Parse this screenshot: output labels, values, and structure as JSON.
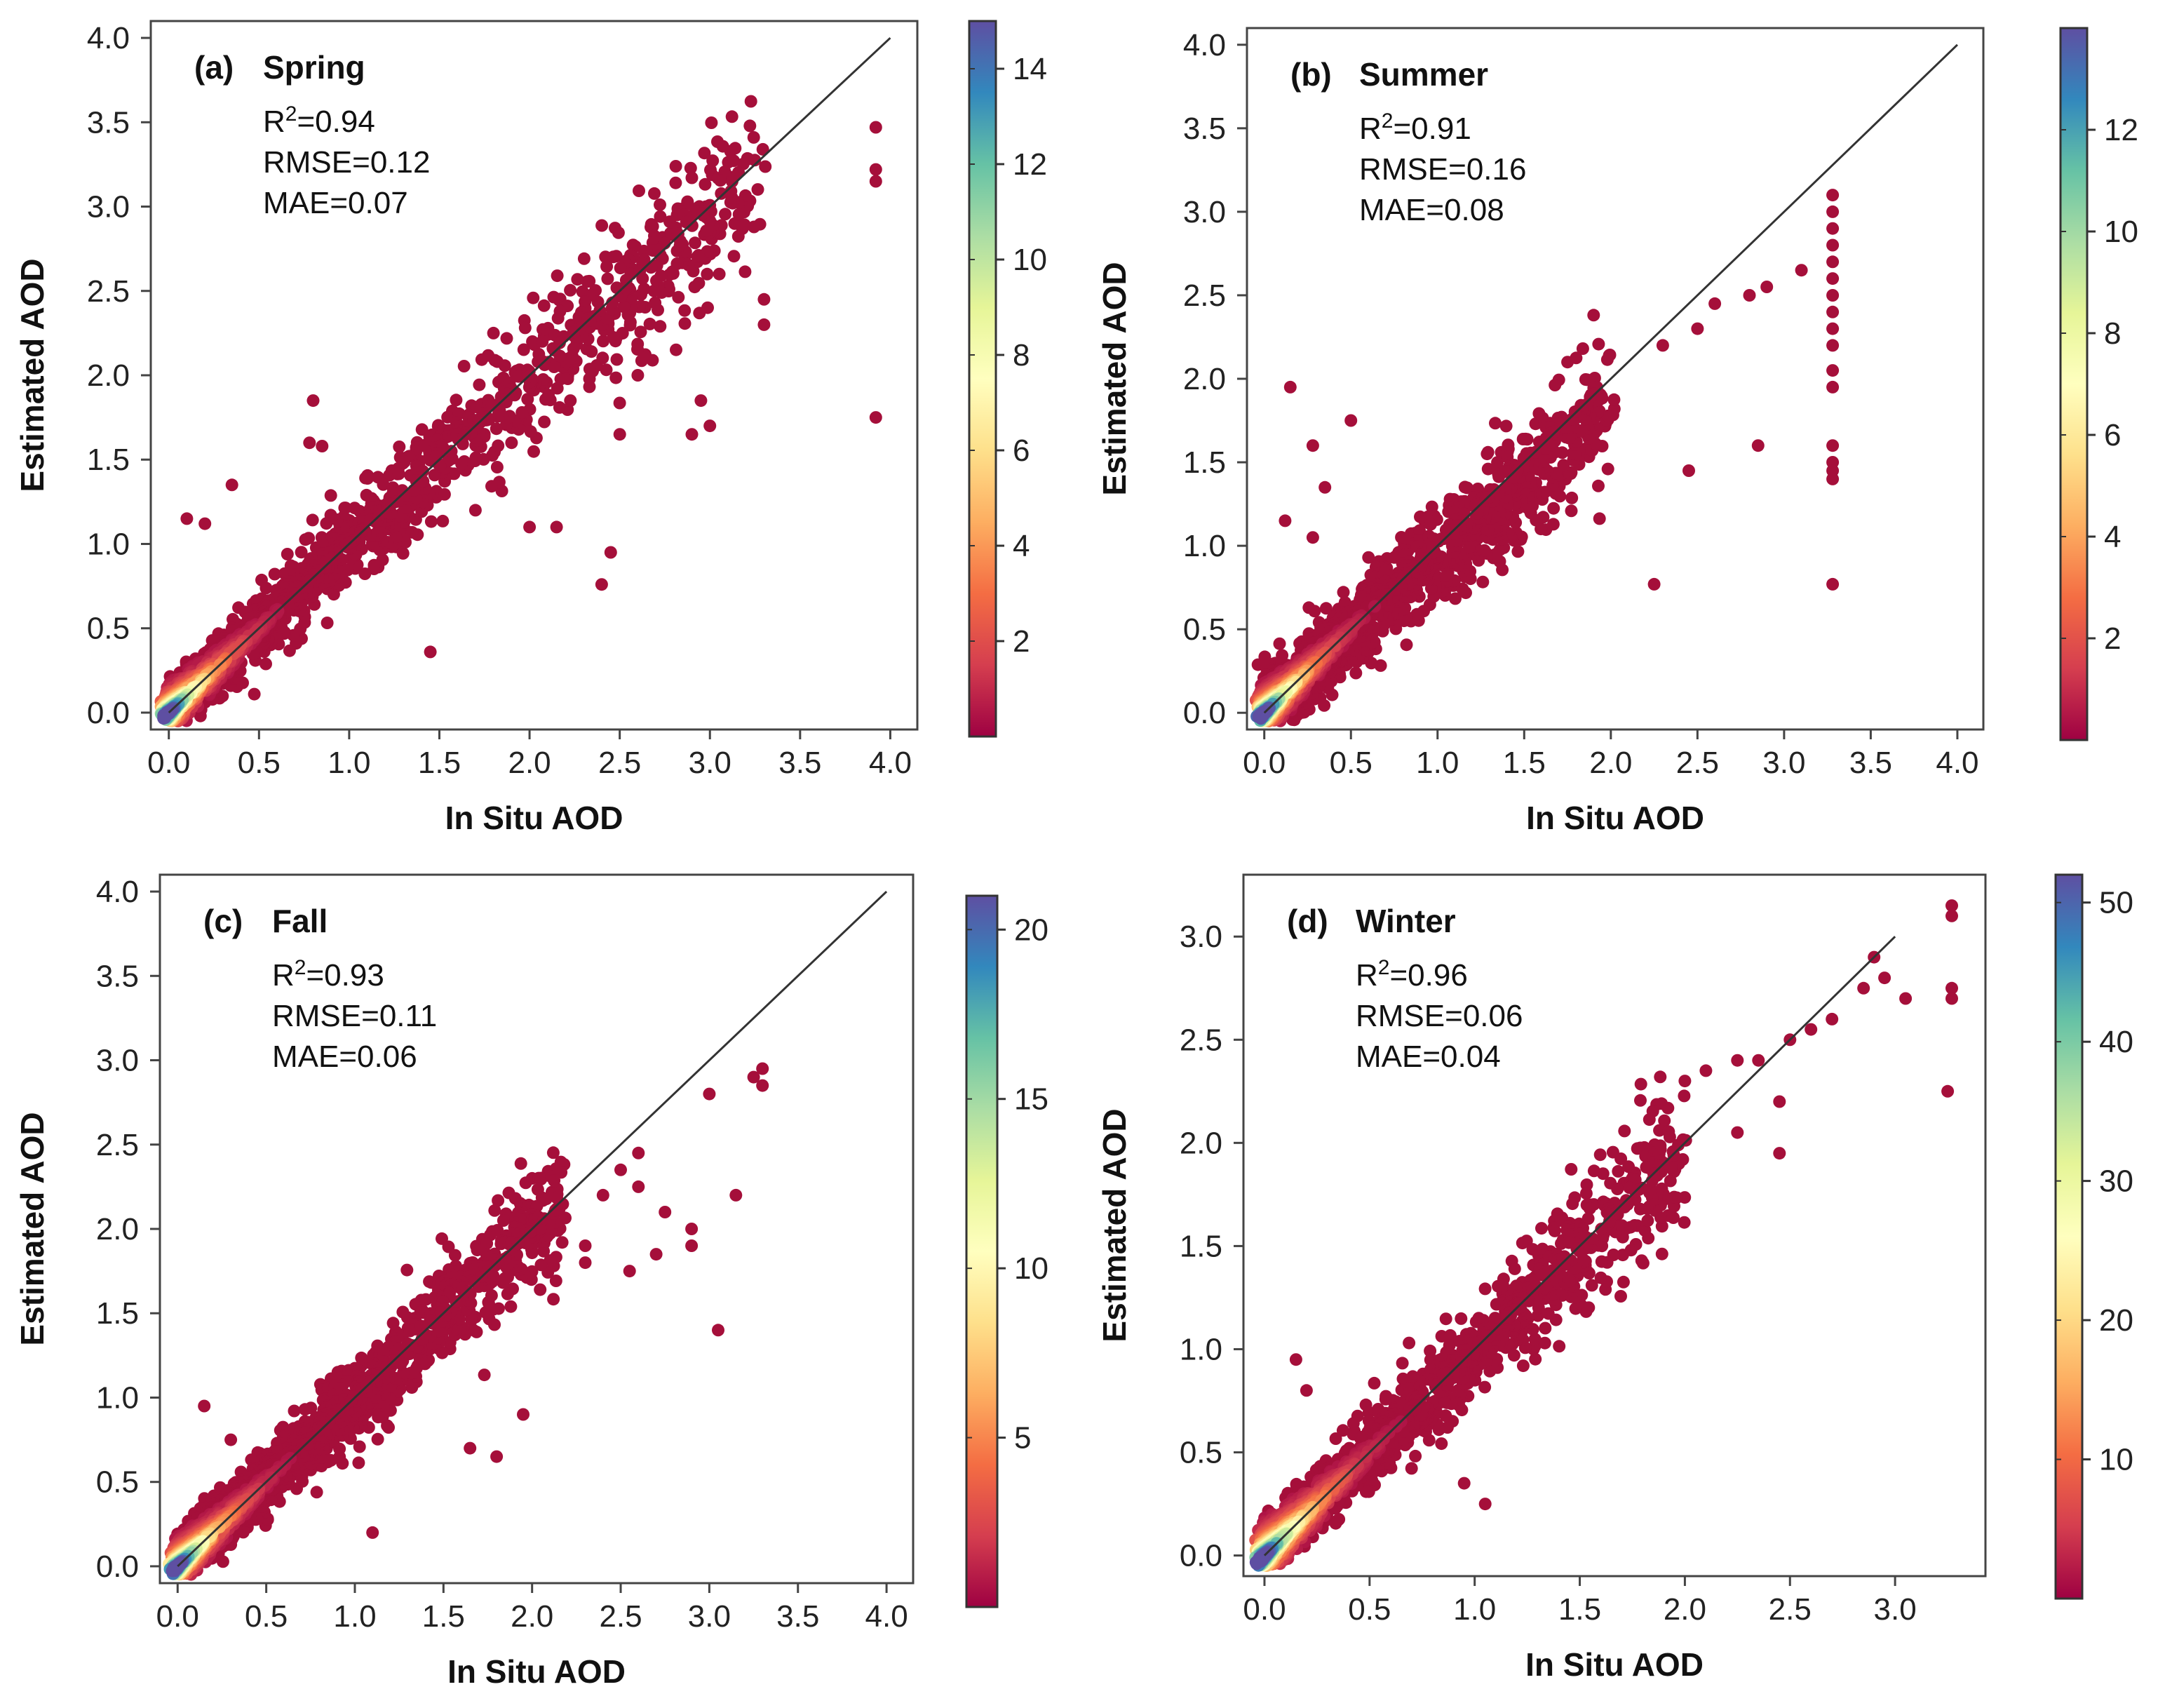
{
  "colors": {
    "point_low": "#a50f3a",
    "identity_line": "#333333",
    "frame": "#444444",
    "colormap": [
      "#9e0142",
      "#d53e4f",
      "#f46d43",
      "#fdae61",
      "#fee08b",
      "#ffffbf",
      "#e6f598",
      "#abdda4",
      "#66c2a5",
      "#3288bd",
      "#5e4fa2"
    ]
  },
  "chart_data": [
    {
      "type": "scatter",
      "id": "a",
      "label": "(a)",
      "title": "Spring",
      "stats": {
        "r2_prefix": "R",
        "r2_sup": "2",
        "r2_value": "=0.94",
        "rmse": "RMSE=0.12",
        "mae": "MAE=0.07"
      },
      "xlabel": "In Situ AOD",
      "ylabel": "Estimated AOD",
      "xlim": [
        -0.1,
        4.15
      ],
      "ylim": [
        -0.1,
        4.1
      ],
      "xticks": [
        "0.0",
        "0.5",
        "1.0",
        "1.5",
        "2.0",
        "2.5",
        "3.0",
        "3.5",
        "4.0"
      ],
      "yticks": [
        "0.0",
        "0.5",
        "1.0",
        "1.5",
        "2.0",
        "2.5",
        "3.0",
        "3.5",
        "4.0"
      ],
      "identity_line": [
        [
          0,
          0
        ],
        [
          4.0,
          4.0
        ]
      ],
      "colorbar": {
        "min": 0,
        "max": 15,
        "ticks": [
          "2",
          "4",
          "6",
          "8",
          "10",
          "12",
          "14"
        ]
      },
      "density_core": {
        "x_max": 3.3,
        "bias": -0.03,
        "spread": 0.07
      },
      "outliers": [
        [
          3.92,
          3.47
        ],
        [
          3.92,
          3.22
        ],
        [
          3.92,
          3.15
        ],
        [
          3.92,
          1.75
        ],
        [
          2.4,
          0.76
        ],
        [
          1.45,
          0.36
        ],
        [
          2.0,
          1.1
        ],
        [
          2.15,
          1.1
        ],
        [
          2.45,
          0.95
        ],
        [
          1.7,
          1.2
        ],
        [
          0.8,
          1.85
        ],
        [
          0.78,
          1.6
        ],
        [
          0.85,
          1.58
        ],
        [
          0.1,
          1.15
        ],
        [
          0.2,
          1.12
        ],
        [
          0.35,
          1.35
        ],
        [
          1.9,
          1.6
        ],
        [
          2.5,
          1.65
        ],
        [
          2.9,
          1.65
        ],
        [
          2.6,
          2.0
        ],
        [
          2.95,
          1.85
        ],
        [
          3.0,
          1.7
        ],
        [
          1.8,
          2.25
        ],
        [
          3.3,
          2.3
        ],
        [
          3.3,
          2.45
        ]
      ]
    },
    {
      "type": "scatter",
      "id": "b",
      "label": "(b)",
      "title": "Summer",
      "stats": {
        "r2_prefix": "R",
        "r2_sup": "2",
        "r2_value": "=0.91",
        "rmse": "RMSE=0.16",
        "mae": "MAE=0.08"
      },
      "xlabel": "In Situ AOD",
      "ylabel": "Estimated AOD",
      "xlim": [
        -0.1,
        4.15
      ],
      "ylim": [
        -0.1,
        4.1
      ],
      "xticks": [
        "0.0",
        "0.5",
        "1.0",
        "1.5",
        "2.0",
        "2.5",
        "3.0",
        "3.5",
        "4.0"
      ],
      "yticks": [
        "0.0",
        "0.5",
        "1.0",
        "1.5",
        "2.0",
        "2.5",
        "3.0",
        "3.5",
        "4.0"
      ],
      "identity_line": [
        [
          0,
          0
        ],
        [
          4.0,
          4.0
        ]
      ],
      "colorbar": {
        "min": 0,
        "max": 14,
        "ticks": [
          "2",
          "4",
          "6",
          "8",
          "10",
          "12"
        ]
      },
      "density_core": {
        "x_max": 2.0,
        "bias": -0.08,
        "spread": 0.09
      },
      "outliers": [
        [
          3.28,
          3.1
        ],
        [
          3.28,
          3.0
        ],
        [
          3.28,
          2.9
        ],
        [
          3.28,
          2.8
        ],
        [
          3.28,
          2.7
        ],
        [
          3.28,
          2.6
        ],
        [
          3.28,
          2.5
        ],
        [
          3.28,
          2.4
        ],
        [
          3.28,
          2.3
        ],
        [
          3.28,
          2.2
        ],
        [
          3.28,
          2.05
        ],
        [
          3.28,
          1.95
        ],
        [
          3.28,
          1.6
        ],
        [
          3.28,
          1.5
        ],
        [
          3.28,
          1.45
        ],
        [
          3.28,
          1.4
        ],
        [
          3.28,
          0.77
        ],
        [
          2.25,
          0.77
        ],
        [
          2.85,
          1.6
        ],
        [
          2.45,
          1.45
        ],
        [
          0.15,
          1.95
        ],
        [
          0.28,
          1.6
        ],
        [
          0.5,
          1.75
        ],
        [
          0.35,
          1.35
        ],
        [
          0.12,
          1.15
        ],
        [
          0.28,
          1.05
        ],
        [
          1.75,
          2.1
        ],
        [
          2.3,
          2.2
        ],
        [
          2.6,
          2.45
        ],
        [
          2.9,
          2.55
        ],
        [
          3.1,
          2.65
        ],
        [
          2.5,
          2.3
        ],
        [
          2.8,
          2.5
        ]
      ]
    },
    {
      "type": "scatter",
      "id": "c",
      "label": "(c)",
      "title": "Fall",
      "stats": {
        "r2_prefix": "R",
        "r2_sup": "2",
        "r2_value": "=0.93",
        "rmse": "RMSE=0.11",
        "mae": "MAE=0.06"
      },
      "xlabel": "In Situ AOD",
      "ylabel": "Estimated AOD",
      "xlim": [
        -0.1,
        4.15
      ],
      "ylim": [
        -0.1,
        4.1
      ],
      "xticks": [
        "0.0",
        "0.5",
        "1.0",
        "1.5",
        "2.0",
        "2.5",
        "3.0",
        "3.5",
        "4.0"
      ],
      "yticks": [
        "0.0",
        "0.5",
        "1.0",
        "1.5",
        "2.0",
        "2.5",
        "3.0",
        "3.5",
        "4.0"
      ],
      "identity_line": [
        [
          0,
          0
        ],
        [
          4.0,
          4.0
        ]
      ],
      "colorbar": {
        "min": 0,
        "max": 21,
        "ticks": [
          "5",
          "10",
          "15",
          "20"
        ]
      },
      "density_core": {
        "x_max": 2.2,
        "bias": -0.02,
        "spread": 0.07
      },
      "outliers": [
        [
          3.3,
          2.95
        ],
        [
          3.3,
          2.85
        ],
        [
          3.25,
          2.9
        ],
        [
          3.0,
          2.8
        ],
        [
          3.05,
          1.4
        ],
        [
          3.15,
          2.2
        ],
        [
          2.9,
          2.0
        ],
        [
          2.75,
          2.1
        ],
        [
          2.6,
          2.25
        ],
        [
          2.6,
          2.45
        ],
        [
          2.5,
          2.35
        ],
        [
          2.4,
          2.2
        ],
        [
          2.7,
          1.85
        ],
        [
          2.3,
          1.9
        ],
        [
          1.9,
          2.05
        ],
        [
          2.0,
          2.3
        ],
        [
          2.3,
          1.8
        ],
        [
          1.1,
          0.2
        ],
        [
          1.95,
          0.9
        ],
        [
          1.8,
          0.65
        ],
        [
          1.65,
          0.7
        ],
        [
          0.15,
          0.95
        ],
        [
          0.3,
          0.75
        ],
        [
          2.9,
          1.9
        ],
        [
          2.55,
          1.75
        ]
      ]
    },
    {
      "type": "scatter",
      "id": "d",
      "label": "(d)",
      "title": "Winter",
      "stats": {
        "r2_prefix": "R",
        "r2_sup": "2",
        "r2_value": "=0.96",
        "rmse": "RMSE=0.06",
        "mae": "MAE=0.04"
      },
      "xlabel": "In Situ AOD",
      "ylabel": "Estimated AOD",
      "xlim": [
        -0.1,
        3.43
      ],
      "ylim": [
        -0.1,
        3.3
      ],
      "xticks": [
        "0.0",
        "0.5",
        "1.0",
        "1.5",
        "2.0",
        "2.5",
        "3.0"
      ],
      "yticks": [
        "0.0",
        "0.5",
        "1.0",
        "1.5",
        "2.0",
        "2.5",
        "3.0"
      ],
      "identity_line": [
        [
          0,
          0
        ],
        [
          3.0,
          3.0
        ]
      ],
      "colorbar": {
        "min": 0,
        "max": 52,
        "ticks": [
          "10",
          "20",
          "30",
          "40",
          "50"
        ]
      },
      "density_core": {
        "x_max": 2.0,
        "bias": -0.02,
        "spread": 0.06
      },
      "outliers": [
        [
          3.27,
          3.15
        ],
        [
          3.27,
          3.1
        ],
        [
          3.27,
          2.75
        ],
        [
          3.27,
          2.7
        ],
        [
          3.25,
          2.25
        ],
        [
          3.05,
          2.7
        ],
        [
          2.95,
          2.8
        ],
        [
          2.85,
          2.75
        ],
        [
          2.9,
          2.9
        ],
        [
          2.7,
          2.6
        ],
        [
          2.6,
          2.55
        ],
        [
          2.5,
          2.5
        ],
        [
          2.45,
          1.95
        ],
        [
          2.45,
          2.2
        ],
        [
          2.35,
          2.4
        ],
        [
          2.25,
          2.4
        ],
        [
          2.1,
          2.35
        ],
        [
          2.0,
          2.3
        ],
        [
          2.25,
          2.05
        ],
        [
          1.05,
          0.25
        ],
        [
          0.95,
          0.35
        ],
        [
          0.15,
          0.95
        ],
        [
          0.2,
          0.8
        ]
      ]
    }
  ]
}
